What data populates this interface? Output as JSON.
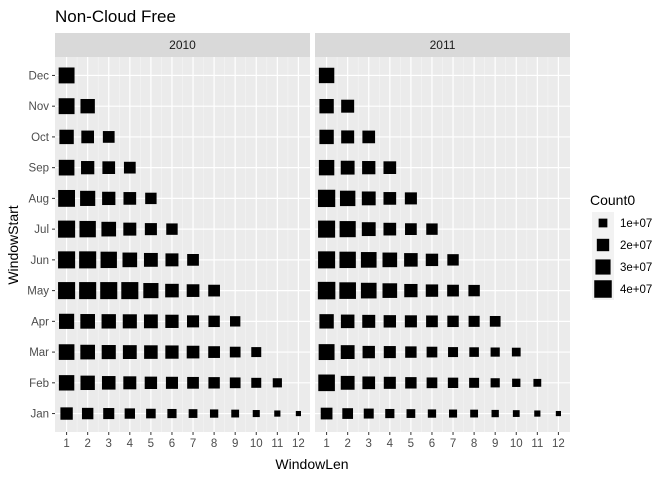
{
  "chart_data": {
    "type": "scatter",
    "title": "Non-Cloud Free",
    "xlabel": "WindowLen",
    "ylabel": "WindowStart",
    "x_ticks": [
      "1",
      "2",
      "3",
      "4",
      "5",
      "6",
      "7",
      "8",
      "9",
      "10",
      "11",
      "12"
    ],
    "y_categories": [
      "Jan",
      "Feb",
      "Mar",
      "Apr",
      "May",
      "Jun",
      "Jul",
      "Aug",
      "Sep",
      "Oct",
      "Nov",
      "Dec"
    ],
    "size_legend": {
      "title": "Count0",
      "breaks": [
        10000000,
        20000000,
        30000000,
        40000000
      ],
      "labels": [
        "1e+07",
        "2e+07",
        "3e+07",
        "4e+07"
      ]
    },
    "panels": [
      {
        "name": "2010",
        "points": {
          "Jan": [
            20000000,
            17000000,
            16000000,
            14000000,
            12000000,
            11000000,
            10000000,
            9000000,
            8000000,
            6500000,
            5000000,
            3500000
          ],
          "Feb": [
            31000000,
            27000000,
            24000000,
            22000000,
            20000000,
            19000000,
            18000000,
            17000000,
            15000000,
            13000000,
            11000000
          ],
          "Mar": [
            32000000,
            28000000,
            26000000,
            25000000,
            24000000,
            23000000,
            21000000,
            18000000,
            15000000,
            13000000
          ],
          "Apr": [
            30000000,
            28000000,
            27000000,
            26000000,
            25000000,
            23000000,
            19000000,
            17000000,
            14000000
          ],
          "May": [
            38000000,
            38000000,
            38000000,
            38000000,
            30000000,
            24000000,
            21000000,
            18000000
          ],
          "Jun": [
            38000000,
            38000000,
            35000000,
            28000000,
            25000000,
            22000000,
            18000000
          ],
          "Jul": [
            38000000,
            35000000,
            28000000,
            22000000,
            19000000,
            17000000
          ],
          "Aug": [
            37000000,
            30000000,
            23000000,
            21000000,
            17000000
          ],
          "Sep": [
            32000000,
            23000000,
            21000000,
            18000000
          ],
          "Oct": [
            27000000,
            21000000,
            18000000
          ],
          "Nov": [
            33000000,
            27000000
          ],
          "Dec": [
            33000000
          ]
        }
      },
      {
        "name": "2011",
        "points": {
          "Jan": [
            18000000,
            15000000,
            13000000,
            11000000,
            10000000,
            9000000,
            8500000,
            8000000,
            7000000,
            6000000,
            5000000,
            3500000
          ],
          "Feb": [
            36000000,
            25000000,
            21000000,
            19000000,
            17000000,
            15000000,
            14000000,
            13000000,
            11000000,
            9000000,
            8000000
          ],
          "Mar": [
            33000000,
            25000000,
            20000000,
            19000000,
            17000000,
            15000000,
            13000000,
            12000000,
            11000000,
            10000000
          ],
          "Apr": [
            27000000,
            24000000,
            22000000,
            20000000,
            19000000,
            18000000,
            17000000,
            16000000,
            15000000
          ],
          "May": [
            40000000,
            36000000,
            32000000,
            28000000,
            23000000,
            20000000,
            18000000,
            17000000
          ],
          "Jun": [
            38000000,
            35000000,
            32000000,
            28000000,
            24000000,
            20000000,
            17000000
          ],
          "Jul": [
            38000000,
            34000000,
            25000000,
            21000000,
            18000000,
            17000000
          ],
          "Aug": [
            39000000,
            31000000,
            25000000,
            21000000,
            19000000
          ],
          "Sep": [
            31000000,
            25000000,
            23000000,
            21000000
          ],
          "Oct": [
            27000000,
            22000000,
            21000000
          ],
          "Nov": [
            27000000,
            22000000
          ],
          "Dec": [
            31000000
          ]
        }
      }
    ],
    "grid": true,
    "legend_position": "right"
  }
}
